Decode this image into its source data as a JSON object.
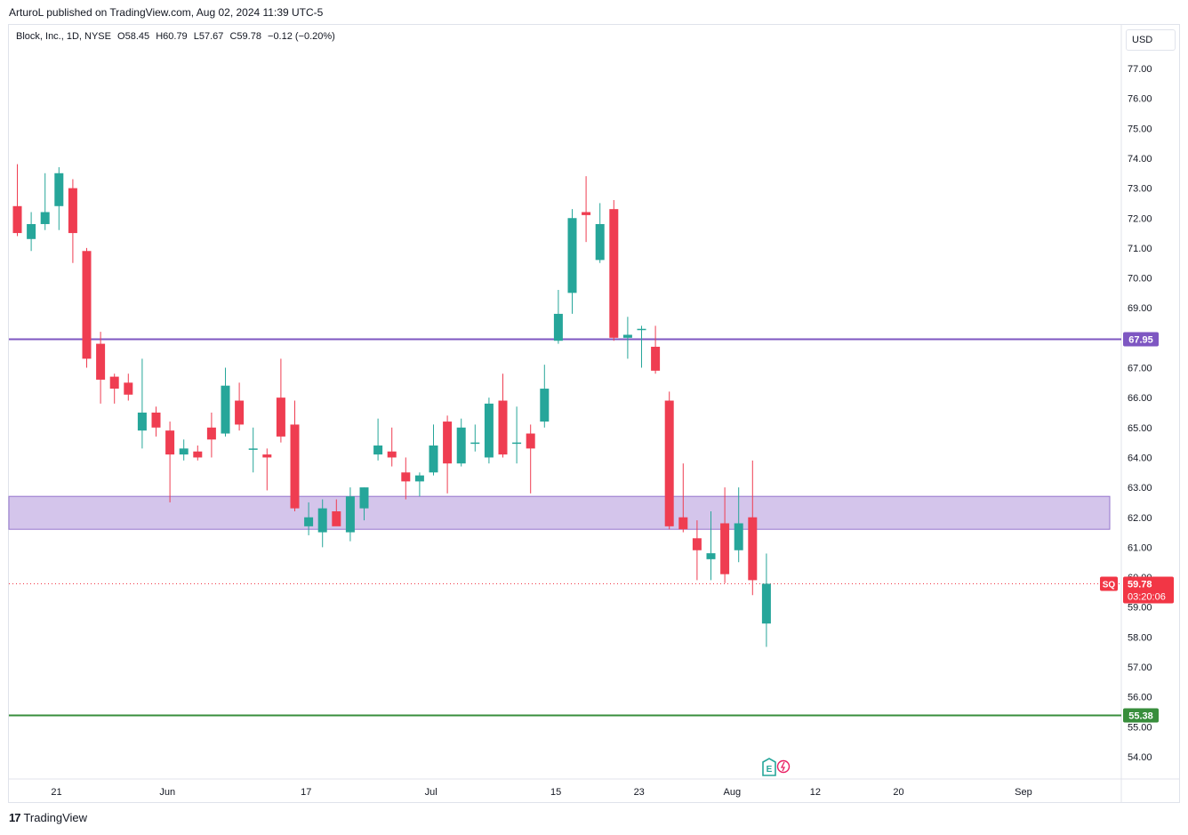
{
  "header": {
    "published": "ArturoL published on TradingView.com, Aug 02, 2024 11:39 UTC-5"
  },
  "legend": {
    "symbol": "Block, Inc., 1D, NYSE",
    "open": "O58.45",
    "high": "H60.79",
    "low": "L57.67",
    "close": "C59.78",
    "change": "−0.12 (−0.20%)"
  },
  "currency": "USD",
  "footer": {
    "brand": "TradingView"
  },
  "colors": {
    "up": "#26a69a",
    "down": "#ef3d51",
    "resistance": "#7e57c2",
    "zone": "#c9b6e6",
    "support": "#388e3c",
    "price": "#f23645"
  },
  "chart_data": {
    "type": "candlestick",
    "title": "",
    "xlabel": "",
    "ylabel": "",
    "ylim": [
      53.3,
      78.5
    ],
    "y_ticks": [
      "77.00",
      "76.00",
      "75.00",
      "74.00",
      "73.00",
      "72.00",
      "71.00",
      "70.00",
      "69.00",
      "68.00",
      "67.00",
      "66.00",
      "65.00",
      "64.00",
      "63.00",
      "62.00",
      "61.00",
      "60.00",
      "59.00",
      "58.00",
      "57.00",
      "56.00",
      "55.00",
      "54.00"
    ],
    "x_ticks": [
      {
        "label": "21",
        "day": 0
      },
      {
        "label": "Jun",
        "day": 8
      },
      {
        "label": "17",
        "day": 18
      },
      {
        "label": "Jul",
        "day": 27
      },
      {
        "label": "15",
        "day": 36
      },
      {
        "label": "23",
        "day": 42
      },
      {
        "label": "Aug",
        "day": 48
      },
      {
        "label": "12",
        "day": 54
      },
      {
        "label": "20",
        "day": 60
      },
      {
        "label": "Sep",
        "day": 69
      }
    ],
    "candles": [
      {
        "o": 72.4,
        "h": 73.8,
        "l": 71.4,
        "c": 71.5
      },
      {
        "o": 71.3,
        "h": 72.2,
        "l": 70.9,
        "c": 71.8
      },
      {
        "o": 71.8,
        "h": 73.5,
        "l": 71.6,
        "c": 72.2
      },
      {
        "o": 72.4,
        "h": 73.7,
        "l": 71.6,
        "c": 73.5
      },
      {
        "o": 73.0,
        "h": 73.3,
        "l": 70.5,
        "c": 71.5
      },
      {
        "o": 70.9,
        "h": 71.0,
        "l": 67.0,
        "c": 67.3
      },
      {
        "o": 67.8,
        "h": 68.2,
        "l": 65.8,
        "c": 66.6
      },
      {
        "o": 66.7,
        "h": 66.8,
        "l": 65.8,
        "c": 66.3
      },
      {
        "o": 66.5,
        "h": 66.8,
        "l": 65.9,
        "c": 66.1
      },
      {
        "o": 64.9,
        "h": 67.3,
        "l": 64.3,
        "c": 65.5
      },
      {
        "o": 65.5,
        "h": 65.7,
        "l": 64.7,
        "c": 65.0
      },
      {
        "o": 64.9,
        "h": 65.2,
        "l": 62.5,
        "c": 64.1
      },
      {
        "o": 64.1,
        "h": 64.6,
        "l": 63.9,
        "c": 64.3
      },
      {
        "o": 64.2,
        "h": 64.4,
        "l": 63.9,
        "c": 64.0
      },
      {
        "o": 65.0,
        "h": 65.5,
        "l": 64.0,
        "c": 64.6
      },
      {
        "o": 64.8,
        "h": 67.0,
        "l": 64.7,
        "c": 66.4
      },
      {
        "o": 65.9,
        "h": 66.5,
        "l": 64.9,
        "c": 65.1
      },
      {
        "o": 64.3,
        "h": 65.0,
        "l": 63.5,
        "c": 64.3
      },
      {
        "o": 64.1,
        "h": 64.3,
        "l": 62.9,
        "c": 64.0
      },
      {
        "o": 66.0,
        "h": 67.3,
        "l": 64.5,
        "c": 64.7
      },
      {
        "o": 65.1,
        "h": 65.9,
        "l": 62.2,
        "c": 62.3
      },
      {
        "o": 61.7,
        "h": 62.5,
        "l": 61.4,
        "c": 62.0
      },
      {
        "o": 61.5,
        "h": 62.6,
        "l": 61.0,
        "c": 62.3
      },
      {
        "o": 62.2,
        "h": 62.6,
        "l": 61.8,
        "c": 61.7
      },
      {
        "o": 61.5,
        "h": 63.0,
        "l": 61.2,
        "c": 62.7
      },
      {
        "o": 62.3,
        "h": 63.0,
        "l": 61.9,
        "c": 63.0
      },
      {
        "o": 64.1,
        "h": 65.3,
        "l": 63.9,
        "c": 64.4
      },
      {
        "o": 64.2,
        "h": 65.0,
        "l": 63.7,
        "c": 64.0
      },
      {
        "o": 63.5,
        "h": 64.0,
        "l": 62.6,
        "c": 63.2
      },
      {
        "o": 63.2,
        "h": 63.5,
        "l": 62.7,
        "c": 63.4
      },
      {
        "o": 63.5,
        "h": 65.1,
        "l": 63.4,
        "c": 64.4
      },
      {
        "o": 65.2,
        "h": 65.4,
        "l": 62.8,
        "c": 63.8
      },
      {
        "o": 63.8,
        "h": 65.3,
        "l": 63.7,
        "c": 65.0
      },
      {
        "o": 64.5,
        "h": 65.1,
        "l": 64.2,
        "c": 64.5
      },
      {
        "o": 64.0,
        "h": 66.0,
        "l": 63.8,
        "c": 65.8
      },
      {
        "o": 65.9,
        "h": 66.8,
        "l": 64.0,
        "c": 64.1
      },
      {
        "o": 64.5,
        "h": 65.7,
        "l": 63.8,
        "c": 64.5
      },
      {
        "o": 64.8,
        "h": 65.1,
        "l": 62.8,
        "c": 64.3
      },
      {
        "o": 65.2,
        "h": 67.1,
        "l": 65.0,
        "c": 66.3
      },
      {
        "o": 67.9,
        "h": 69.6,
        "l": 67.8,
        "c": 68.8
      },
      {
        "o": 69.5,
        "h": 72.3,
        "l": 68.8,
        "c": 72.0
      },
      {
        "o": 72.2,
        "h": 73.4,
        "l": 71.2,
        "c": 72.1
      },
      {
        "o": 70.6,
        "h": 72.5,
        "l": 70.5,
        "c": 71.8
      },
      {
        "o": 72.3,
        "h": 72.6,
        "l": 67.9,
        "c": 68.0
      },
      {
        "o": 68.0,
        "h": 68.7,
        "l": 67.3,
        "c": 68.1
      },
      {
        "o": 68.3,
        "h": 68.4,
        "l": 67.0,
        "c": 68.3
      },
      {
        "o": 67.7,
        "h": 68.4,
        "l": 66.8,
        "c": 66.9
      },
      {
        "o": 65.9,
        "h": 66.2,
        "l": 61.6,
        "c": 61.7
      },
      {
        "o": 62.0,
        "h": 63.8,
        "l": 61.5,
        "c": 61.6
      },
      {
        "o": 61.3,
        "h": 61.9,
        "l": 59.9,
        "c": 60.9
      },
      {
        "o": 60.6,
        "h": 62.2,
        "l": 59.9,
        "c": 60.8
      },
      {
        "o": 61.8,
        "h": 63.0,
        "l": 59.8,
        "c": 60.1
      },
      {
        "o": 60.9,
        "h": 63.0,
        "l": 60.5,
        "c": 61.8
      },
      {
        "o": 62.0,
        "h": 63.9,
        "l": 59.4,
        "c": 59.9
      },
      {
        "o": 58.45,
        "h": 60.79,
        "l": 57.67,
        "c": 59.78
      }
    ],
    "horizontal_lines": [
      {
        "price": 67.95,
        "label": "67.95",
        "color": "#7e57c2"
      },
      {
        "price": 55.38,
        "label": "55.38",
        "color": "#388e3c"
      }
    ],
    "zone": {
      "top": 62.7,
      "bottom": 61.6
    },
    "last_price": {
      "symbol": "SQ",
      "value": "59.78",
      "countdown": "03:20:06",
      "price": 59.78
    }
  }
}
